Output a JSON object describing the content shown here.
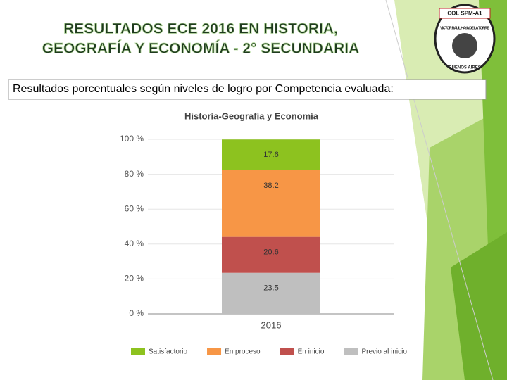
{
  "slide_title": [
    "RESULTADOS ECE 2016 EN HISTORIA,",
    "GEOGRAFÍA Y ECONOMÍA - 2° SECUNDARIA"
  ],
  "subtitle": "Resultados porcentuales según niveles de logro por Competencia evaluada:",
  "logo": {
    "top": "COL SPM-A1",
    "middle": "VICTOR RAUL HAYA DE LA TORRE",
    "bottom": "BUENOS AIRES"
  },
  "chart_data": {
    "type": "stacked_bar",
    "title": "Historía-Geografía y Economía",
    "categories": [
      "2016"
    ],
    "series": [
      {
        "name": "Previo al inicio",
        "color": "#bfbfbf",
        "values": [
          23.5
        ]
      },
      {
        "name": "En inicio",
        "color": "#c0504d",
        "values": [
          20.6
        ]
      },
      {
        "name": "En proceso",
        "color": "#f79646",
        "values": [
          38.2
        ]
      },
      {
        "name": "Satisfactorio",
        "color": "#8dc21f",
        "values": [
          17.6
        ]
      }
    ],
    "ylim": [
      0,
      100
    ],
    "yticks": [
      {
        "value": 0,
        "label": "0 %"
      },
      {
        "value": 20,
        "label": "20 %"
      },
      {
        "value": 40,
        "label": "40 %"
      },
      {
        "value": 60,
        "label": "60 %"
      },
      {
        "value": 80,
        "label": "80 %"
      },
      {
        "value": 100,
        "label": "100 %"
      }
    ],
    "grid": true,
    "legend": "bottom"
  }
}
